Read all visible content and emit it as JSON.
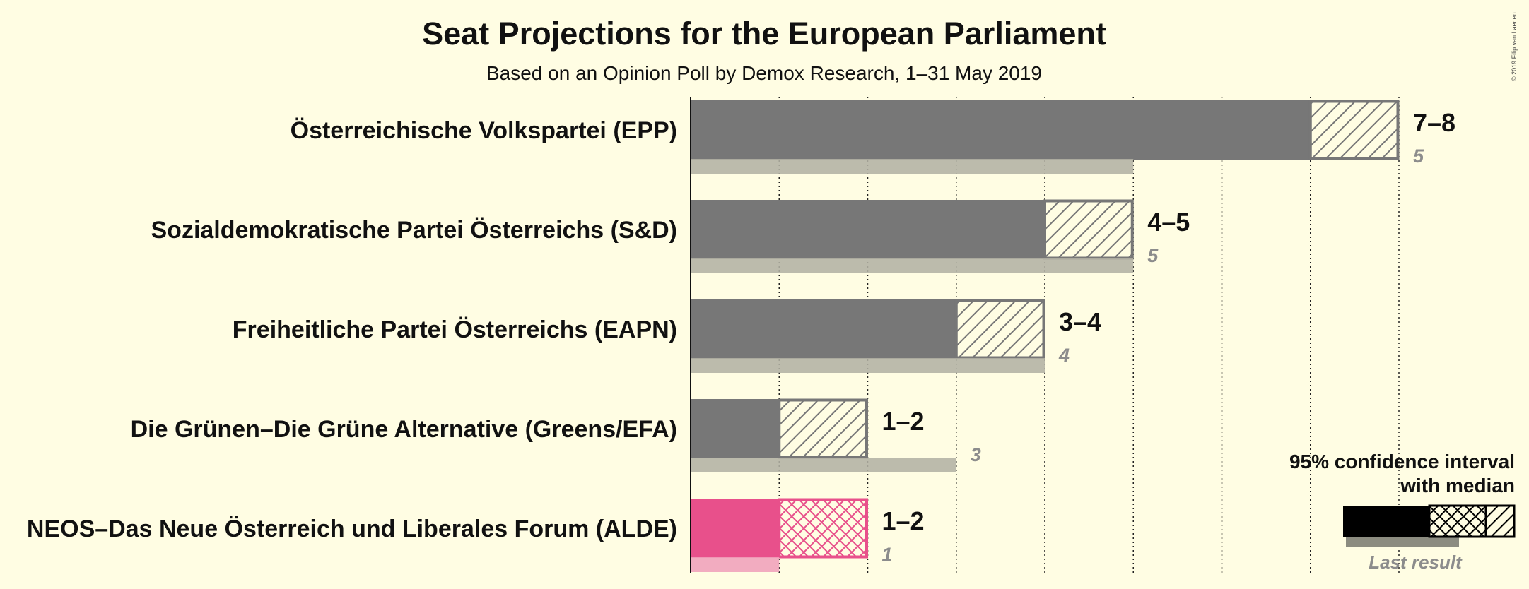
{
  "title": "Seat Projections for the European Parliament",
  "subtitle": "Based on an Opinion Poll by Demox Research, 1–31 May 2019",
  "copyright": "© 2019 Filip van Laenen",
  "legend": {
    "line1": "95% confidence interval",
    "line2": "with median",
    "last_result": "Last result"
  },
  "colors": {
    "background": "#fffde3",
    "grey_bar": "#777777",
    "grey_last": "#b3b2a4",
    "pink_bar": "#e8508b",
    "pink_last": "#f0a1bb"
  },
  "chart_data": {
    "type": "bar",
    "orientation": "horizontal",
    "title": "Seat Projections for the European Parliament",
    "subtitle": "Based on an Opinion Poll by Demox Research, 1–31 May 2019",
    "xlim": [
      0,
      8
    ],
    "grid": "dotted vertical lines at each seat",
    "legend_placement": "bottom-right",
    "parties": [
      {
        "name": "Österreichische Volkspartei (EPP)",
        "ci_low": 7,
        "ci_high": 8,
        "label": "7–8",
        "last_result": 5,
        "last_label": "5",
        "color": "grey"
      },
      {
        "name": "Sozialdemokratische Partei Österreichs (S&D)",
        "ci_low": 4,
        "ci_high": 5,
        "label": "4–5",
        "last_result": 5,
        "last_label": "5",
        "color": "grey"
      },
      {
        "name": "Freiheitliche Partei Österreichs (EAPN)",
        "ci_low": 3,
        "ci_high": 4,
        "label": "3–4",
        "last_result": 4,
        "last_label": "4",
        "color": "grey"
      },
      {
        "name": "Die Grünen–Die Grüne Alternative (Greens/EFA)",
        "ci_low": 1,
        "ci_high": 2,
        "label": "1–2",
        "last_result": 3,
        "last_label": "3",
        "color": "grey"
      },
      {
        "name": "NEOS–Das Neue Österreich und Liberales Forum (ALDE)",
        "ci_low": 1,
        "ci_high": 2,
        "label": "1–2",
        "last_result": 1,
        "last_label": "1",
        "color": "pink",
        "pattern": "crosshatch"
      }
    ]
  }
}
